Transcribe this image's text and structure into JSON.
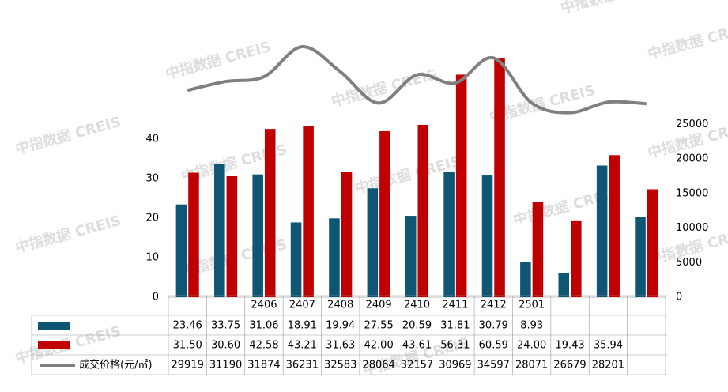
{
  "chart_data": {
    "type": "bar-line",
    "watermark": "中指数据 CREIS",
    "categories": [
      null,
      null,
      "2406",
      "2407",
      "2408",
      "2409",
      "2410",
      "2411",
      "2412",
      "2501",
      null,
      null,
      null
    ],
    "ylim": [
      0,
      70
    ],
    "yticks": [
      0,
      10,
      20,
      30,
      40
    ],
    "y2lim": [
      0,
      40000
    ],
    "y2ticks": [
      0,
      5000,
      10000,
      15000,
      20000,
      25000
    ],
    "series": [
      {
        "name": null,
        "color": "#0f5675",
        "values": [
          23.46,
          33.75,
          31.06,
          18.91,
          19.94,
          27.55,
          20.59,
          31.81,
          30.79,
          8.93,
          6.0,
          33.3,
          20.2
        ],
        "value_labels": [
          "23.46",
          "33.75",
          "31.06",
          "18.91",
          "19.94",
          "27.55",
          "20.59",
          "31.81",
          "30.79",
          "8.93",
          null,
          null,
          null
        ]
      },
      {
        "name": null,
        "color": "#c00000",
        "values": [
          31.5,
          30.6,
          42.58,
          43.21,
          31.63,
          42.0,
          43.61,
          56.31,
          60.59,
          24.0,
          19.43,
          35.94,
          27.3
        ],
        "value_labels": [
          "31.50",
          "30.60",
          "42.58",
          "43.21",
          "31.63",
          "42.00",
          "43.61",
          "56.31",
          "60.59",
          "24.00",
          "19.43",
          "35.94",
          null
        ]
      },
      {
        "name": "成交价格(元/㎡)",
        "color": "#808080",
        "axis": "y2",
        "values": [
          29919,
          31190,
          31874,
          36231,
          32583,
          28064,
          32157,
          30969,
          34597,
          28071,
          26679,
          28201,
          27970
        ],
        "value_labels": [
          "29919",
          "31190",
          "31874",
          "36231",
          "32583",
          "28064",
          "32157",
          "30969",
          "34597",
          "28071",
          "26679",
          "28201",
          null
        ]
      }
    ]
  }
}
